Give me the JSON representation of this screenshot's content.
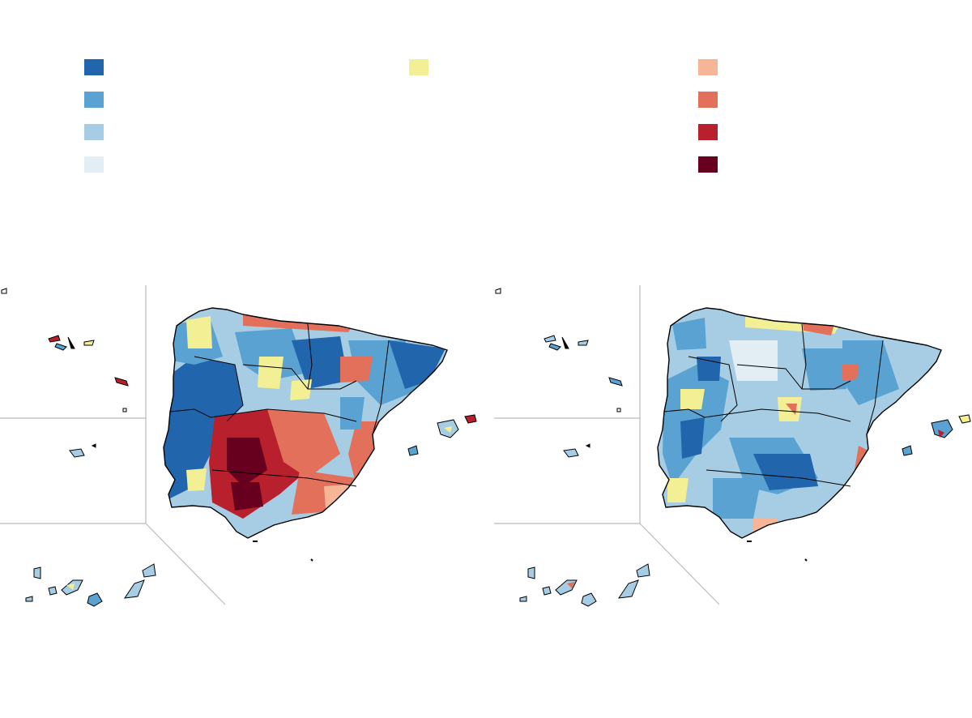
{
  "legend": {
    "colors": {
      "blue_dark": "#2166ac",
      "blue_mid": "#5aa2d1",
      "blue_light": "#a6cde4",
      "blue_pale": "#e3eef4",
      "neutral_yellow": "#f3ef95",
      "red_pale": "#f6b596",
      "red_mid": "#e3705a",
      "red_strong": "#b8202e",
      "red_dark": "#67001f"
    },
    "labels": {
      "blue_dark": "",
      "blue_mid": "",
      "blue_light": "",
      "blue_pale": "",
      "neutral_yellow": "",
      "red_pale": "",
      "red_mid": "",
      "red_strong": "",
      "red_dark": ""
    }
  },
  "maps": {
    "left": {
      "dominant_colors": [
        "#2166ac",
        "#a6cde4",
        "#e3705a",
        "#b8202e",
        "#67001f",
        "#f3ef95"
      ]
    },
    "right": {
      "dominant_colors": [
        "#5aa2d1",
        "#2166ac",
        "#a6cde4",
        "#f3ef95",
        "#e3705a"
      ]
    }
  }
}
